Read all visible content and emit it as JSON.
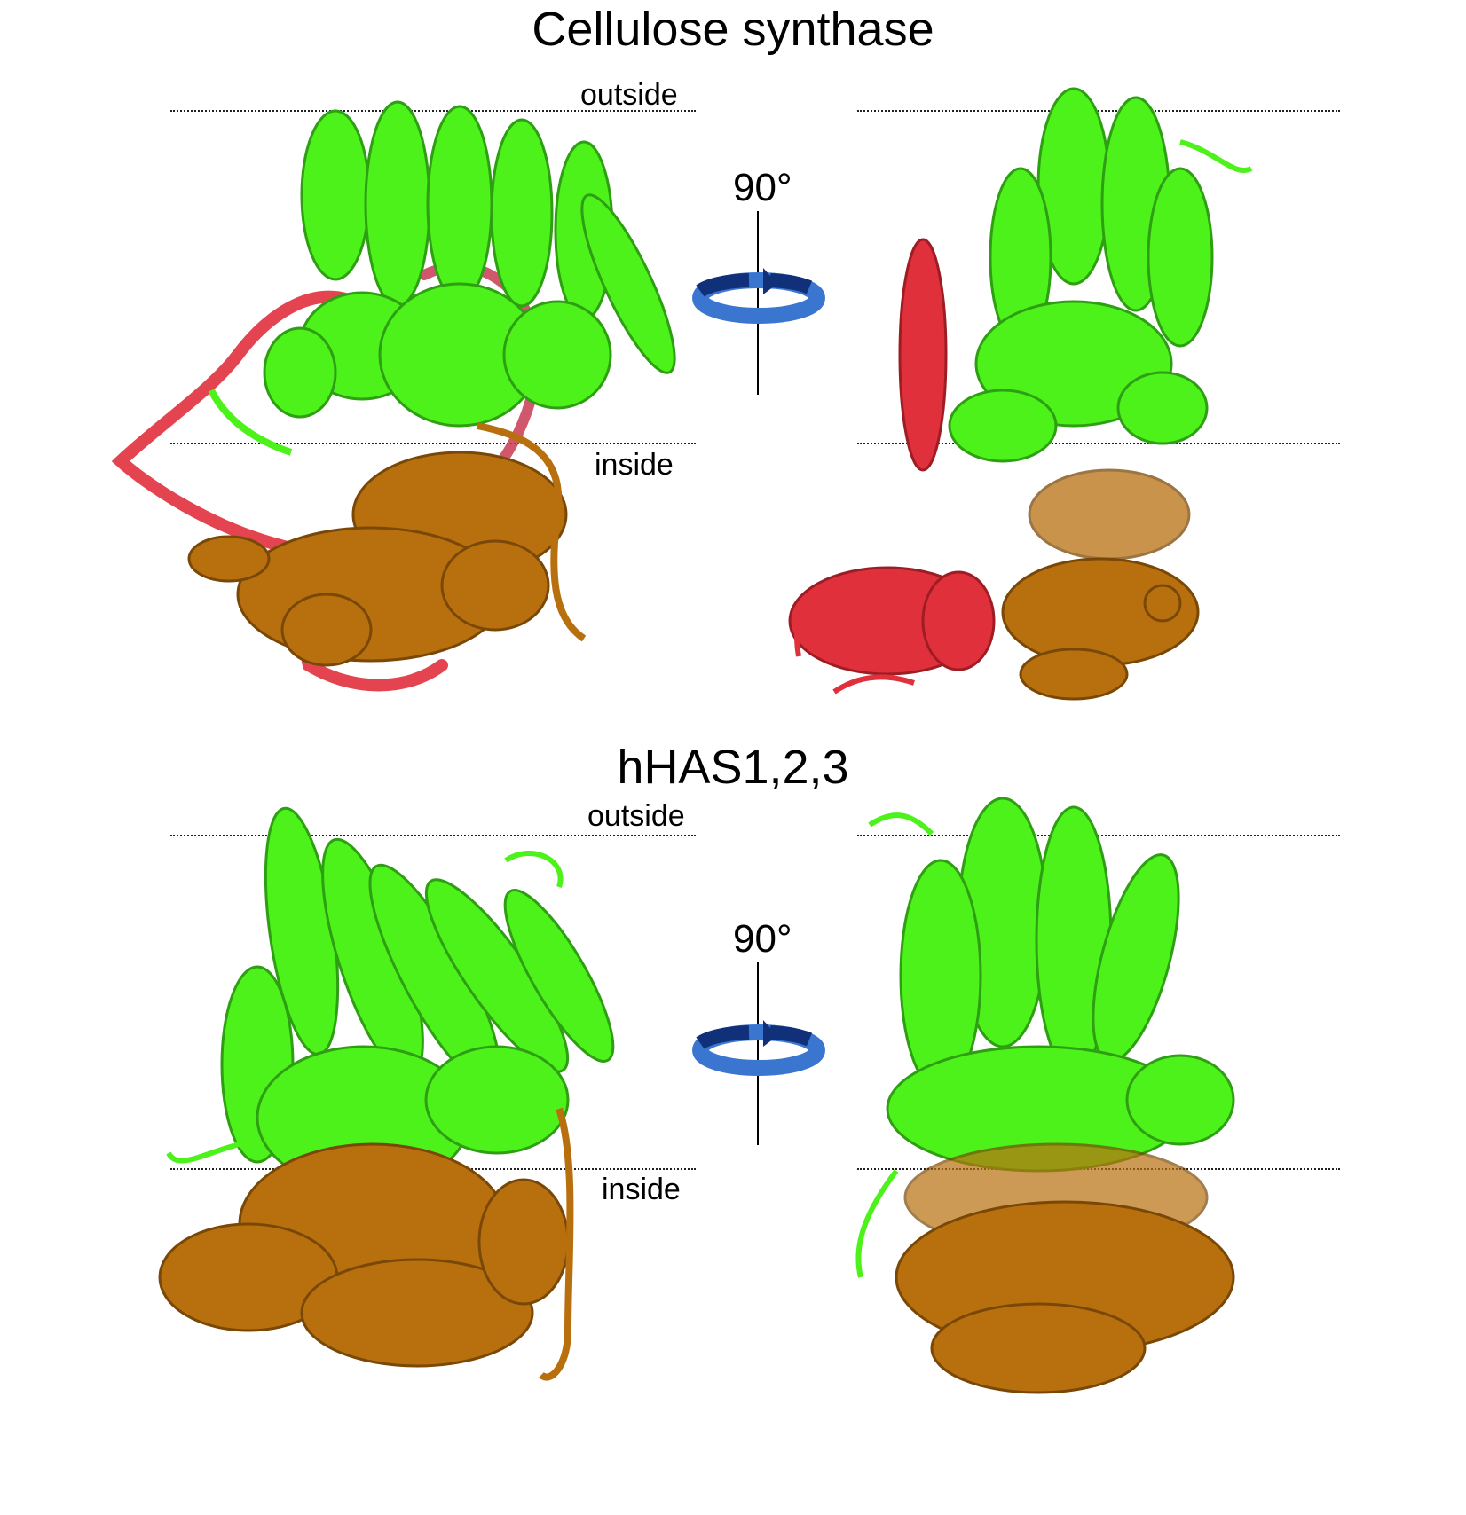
{
  "panels": {
    "top": {
      "title": "Cellulose synthase",
      "outside_label": "outside",
      "inside_label": "inside",
      "rotation_label": "90°"
    },
    "bottom": {
      "title": "hHAS1,2,3",
      "outside_label": "outside",
      "inside_label": "inside",
      "rotation_label": "90°"
    }
  },
  "colors": {
    "transmembrane": "#4df21a",
    "cytoplasmic": "#b8700f",
    "accessory": "#e0303c",
    "rotation_arrow_light": "#3a76d0",
    "rotation_arrow_dark": "#10307a"
  },
  "icons": [
    "rotation-arrow-icon",
    "rotation-axis"
  ]
}
